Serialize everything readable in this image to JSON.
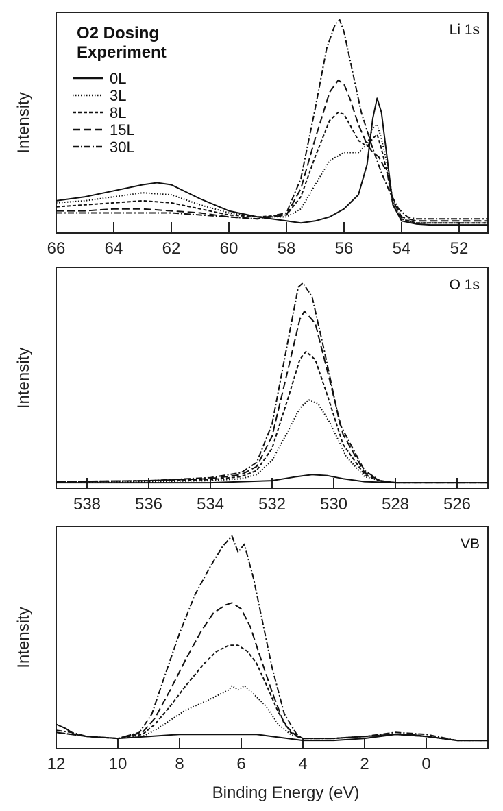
{
  "chart_data": [
    {
      "type": "line",
      "panel_label": "Li 1s",
      "ylabel": "Intensity",
      "xlabel": "",
      "xlim": [
        66,
        51
      ],
      "ylim": [
        0,
        1.05
      ],
      "xticks": [
        66,
        64,
        62,
        60,
        58,
        56,
        54,
        52
      ],
      "xtick_labels": [
        "66",
        "64",
        "62",
        "60",
        "58",
        "56",
        "54",
        "52"
      ],
      "legend": {
        "title_lines": [
          "O2 Dosing",
          "Experiment"
        ],
        "entries": [
          "0L",
          "3L",
          "8L",
          "15L",
          "30L"
        ],
        "position": "top-left"
      },
      "series": [
        {
          "name": "0L",
          "style": "solid",
          "x": [
            66,
            65,
            64,
            63,
            62.5,
            62,
            61,
            60,
            59,
            58,
            57.5,
            57,
            56.5,
            56,
            55.5,
            55.2,
            55.0,
            54.85,
            54.7,
            54.5,
            54.3,
            54,
            53.5,
            53,
            52,
            51
          ],
          "y": [
            0.14,
            0.16,
            0.19,
            0.22,
            0.23,
            0.22,
            0.15,
            0.09,
            0.06,
            0.04,
            0.03,
            0.04,
            0.06,
            0.1,
            0.17,
            0.32,
            0.55,
            0.65,
            0.58,
            0.35,
            0.12,
            0.04,
            0.025,
            0.02,
            0.02,
            0.02
          ]
        },
        {
          "name": "3L",
          "style": "dotted",
          "x": [
            66,
            65,
            64,
            63,
            62,
            61,
            60,
            59,
            58,
            57.5,
            57,
            56.5,
            56,
            55.5,
            55.2,
            55.0,
            54.85,
            54.7,
            54.5,
            54.3,
            54,
            53.5,
            53,
            52,
            51
          ],
          "y": [
            0.13,
            0.14,
            0.16,
            0.18,
            0.17,
            0.12,
            0.08,
            0.06,
            0.06,
            0.1,
            0.22,
            0.34,
            0.38,
            0.38,
            0.42,
            0.5,
            0.52,
            0.45,
            0.32,
            0.14,
            0.05,
            0.03,
            0.03,
            0.03,
            0.03
          ]
        },
        {
          "name": "8L",
          "style": "dashed",
          "x": [
            66,
            65,
            64,
            63,
            62,
            61,
            60,
            59,
            58,
            57.5,
            57,
            56.5,
            56.2,
            56,
            55.8,
            55.5,
            55.2,
            55.0,
            54.85,
            54.7,
            54.5,
            54.3,
            54,
            53.5,
            53,
            52,
            51
          ],
          "y": [
            0.11,
            0.12,
            0.13,
            0.14,
            0.13,
            0.1,
            0.07,
            0.06,
            0.07,
            0.16,
            0.36,
            0.54,
            0.58,
            0.57,
            0.52,
            0.44,
            0.41,
            0.45,
            0.47,
            0.4,
            0.28,
            0.12,
            0.05,
            0.03,
            0.03,
            0.03,
            0.03
          ]
        },
        {
          "name": "15L",
          "style": "longdash",
          "x": [
            66,
            65,
            64,
            63,
            62,
            61,
            60,
            59,
            58,
            57.5,
            57,
            56.5,
            56.2,
            56,
            55.8,
            55.5,
            55.2,
            55.0,
            54.8,
            54.5,
            54.3,
            54,
            53.5,
            53,
            52,
            51
          ],
          "y": [
            0.09,
            0.09,
            0.1,
            0.1,
            0.09,
            0.08,
            0.06,
            0.05,
            0.07,
            0.2,
            0.45,
            0.68,
            0.74,
            0.72,
            0.65,
            0.52,
            0.42,
            0.38,
            0.36,
            0.28,
            0.14,
            0.06,
            0.04,
            0.04,
            0.04,
            0.04
          ]
        },
        {
          "name": "30L",
          "style": "dashdot",
          "x": [
            66,
            65,
            64,
            63,
            62,
            61,
            60,
            59,
            58,
            57.5,
            57,
            56.6,
            56.3,
            56.15,
            56.0,
            55.7,
            55.4,
            55.0,
            54.7,
            54.4,
            54.1,
            53.8,
            53.5,
            53,
            52,
            51
          ],
          "y": [
            0.08,
            0.08,
            0.08,
            0.08,
            0.08,
            0.07,
            0.06,
            0.05,
            0.08,
            0.25,
            0.6,
            0.9,
            1.02,
            1.04,
            0.98,
            0.78,
            0.58,
            0.4,
            0.28,
            0.18,
            0.1,
            0.06,
            0.05,
            0.05,
            0.05,
            0.05
          ]
        }
      ]
    },
    {
      "type": "line",
      "panel_label": "O 1s",
      "ylabel": "Intensity",
      "xlabel": "",
      "xlim": [
        539,
        525
      ],
      "ylim": [
        0,
        1.05
      ],
      "xticks": [
        538,
        536,
        534,
        532,
        530,
        528,
        526
      ],
      "xtick_labels": [
        "538",
        "536",
        "534",
        "532",
        "530",
        "528",
        "526"
      ],
      "series": [
        {
          "name": "0L",
          "style": "solid",
          "x": [
            539,
            536,
            534,
            533,
            532,
            531.2,
            530.7,
            530.2,
            529.7,
            529,
            528,
            526,
            525
          ],
          "y": [
            0.01,
            0.01,
            0.01,
            0.015,
            0.02,
            0.04,
            0.05,
            0.045,
            0.03,
            0.015,
            0.01,
            0.01,
            0.01
          ]
        },
        {
          "name": "3L",
          "style": "dotted",
          "x": [
            539,
            536,
            534,
            533,
            532.5,
            532,
            531.5,
            531.1,
            530.8,
            530.5,
            530.1,
            529.6,
            529,
            528.5,
            528,
            526,
            525
          ],
          "y": [
            0.01,
            0.015,
            0.02,
            0.03,
            0.05,
            0.12,
            0.26,
            0.38,
            0.42,
            0.4,
            0.3,
            0.14,
            0.04,
            0.02,
            0.01,
            0.01,
            0.01
          ]
        },
        {
          "name": "8L",
          "style": "dashed",
          "x": [
            539,
            536,
            534,
            533,
            532.5,
            532,
            531.5,
            531.1,
            530.9,
            530.6,
            530.2,
            529.7,
            529,
            528.5,
            528,
            526,
            525
          ],
          "y": [
            0.015,
            0.02,
            0.025,
            0.04,
            0.07,
            0.18,
            0.42,
            0.62,
            0.66,
            0.62,
            0.44,
            0.2,
            0.05,
            0.02,
            0.01,
            0.01,
            0.01
          ]
        },
        {
          "name": "15L",
          "style": "longdash",
          "x": [
            539,
            536,
            534,
            533,
            532.5,
            532,
            531.5,
            531.1,
            530.95,
            530.6,
            530.2,
            529.7,
            529,
            528.5,
            528,
            526,
            525
          ],
          "y": [
            0.015,
            0.02,
            0.03,
            0.05,
            0.09,
            0.24,
            0.56,
            0.82,
            0.86,
            0.8,
            0.56,
            0.25,
            0.06,
            0.02,
            0.01,
            0.01,
            0.01
          ]
        },
        {
          "name": "30L",
          "style": "dashdot",
          "x": [
            539,
            536,
            534,
            533,
            532.5,
            532,
            531.5,
            531.15,
            531.0,
            530.7,
            530.3,
            529.8,
            529,
            528.5,
            528,
            526,
            525
          ],
          "y": [
            0.015,
            0.02,
            0.035,
            0.06,
            0.11,
            0.3,
            0.7,
            0.98,
            1.0,
            0.93,
            0.66,
            0.3,
            0.07,
            0.02,
            0.01,
            0.01,
            0.01
          ]
        }
      ]
    },
    {
      "type": "line",
      "panel_label": "VB",
      "ylabel": "Intensity",
      "xlabel": "Binding Energy (eV)",
      "xlim": [
        12,
        -2
      ],
      "ylim": [
        0,
        1.05
      ],
      "xticks": [
        12,
        10,
        8,
        6,
        4,
        2,
        0
      ],
      "xtick_labels": [
        "12",
        "10",
        "8",
        "6",
        "4",
        "2",
        "0"
      ],
      "series": [
        {
          "name": "0L",
          "style": "solid",
          "x": [
            12,
            11.7,
            11.4,
            11,
            10,
            9,
            8,
            7,
            6,
            5.5,
            5,
            4.5,
            4,
            3,
            2,
            1,
            0.5,
            0,
            -1,
            -2
          ],
          "y": [
            0.1,
            0.08,
            0.05,
            0.04,
            0.03,
            0.04,
            0.05,
            0.05,
            0.05,
            0.05,
            0.04,
            0.03,
            0.02,
            0.02,
            0.03,
            0.05,
            0.05,
            0.04,
            0.02,
            0.02
          ]
        },
        {
          "name": "3L",
          "style": "dotted",
          "x": [
            12,
            11.5,
            11,
            10,
            9.2,
            8.8,
            8.3,
            7.8,
            7.2,
            6.8,
            6.4,
            6.3,
            6.1,
            5.9,
            5.6,
            5.2,
            4.8,
            4.4,
            4,
            3,
            2,
            1,
            0,
            -1,
            -2
          ],
          "y": [
            0.06,
            0.05,
            0.04,
            0.03,
            0.04,
            0.07,
            0.12,
            0.17,
            0.21,
            0.24,
            0.27,
            0.29,
            0.27,
            0.29,
            0.25,
            0.19,
            0.1,
            0.05,
            0.03,
            0.03,
            0.04,
            0.05,
            0.04,
            0.02,
            0.02
          ]
        },
        {
          "name": "8L",
          "style": "dashed",
          "x": [
            12,
            11.5,
            11,
            10,
            9.2,
            8.8,
            8.3,
            7.8,
            7.2,
            6.8,
            6.4,
            6.1,
            5.8,
            5.5,
            5.2,
            4.8,
            4.4,
            4,
            3,
            2,
            1,
            0,
            -1,
            -2
          ],
          "y": [
            0.06,
            0.05,
            0.04,
            0.03,
            0.05,
            0.1,
            0.19,
            0.29,
            0.4,
            0.46,
            0.49,
            0.49,
            0.46,
            0.4,
            0.3,
            0.16,
            0.06,
            0.03,
            0.03,
            0.04,
            0.05,
            0.04,
            0.02,
            0.02
          ]
        },
        {
          "name": "15L",
          "style": "longdash",
          "x": [
            12,
            11.5,
            11,
            10,
            9.2,
            8.8,
            8.3,
            7.8,
            7.3,
            6.9,
            6.5,
            6.3,
            6.0,
            5.7,
            5.4,
            5.0,
            4.6,
            4.2,
            4,
            3,
            2,
            1,
            0,
            -1,
            -2
          ],
          "y": [
            0.06,
            0.05,
            0.04,
            0.03,
            0.06,
            0.13,
            0.27,
            0.42,
            0.56,
            0.65,
            0.69,
            0.7,
            0.67,
            0.58,
            0.44,
            0.26,
            0.1,
            0.04,
            0.03,
            0.03,
            0.04,
            0.05,
            0.04,
            0.02,
            0.02
          ]
        },
        {
          "name": "30L",
          "style": "dashdot",
          "x": [
            12,
            11.5,
            11,
            10,
            9.3,
            8.9,
            8.5,
            8.0,
            7.5,
            7.0,
            6.6,
            6.3,
            6.1,
            5.9,
            5.6,
            5.3,
            5.0,
            4.6,
            4.2,
            4,
            3,
            2,
            1,
            0,
            -1,
            -2
          ],
          "y": [
            0.07,
            0.06,
            0.04,
            0.03,
            0.06,
            0.15,
            0.33,
            0.55,
            0.74,
            0.88,
            0.98,
            1.03,
            0.95,
            0.99,
            0.82,
            0.6,
            0.38,
            0.15,
            0.05,
            0.03,
            0.03,
            0.04,
            0.06,
            0.05,
            0.02,
            0.02
          ]
        }
      ]
    }
  ],
  "styles": {
    "ink": "#111111",
    "frame": "#222222",
    "dash": {
      "solid": "",
      "dotted": "1.5 2.5",
      "dashed": "5 3",
      "longdash": "11 5",
      "dashdot": "9 3 2 3"
    }
  }
}
